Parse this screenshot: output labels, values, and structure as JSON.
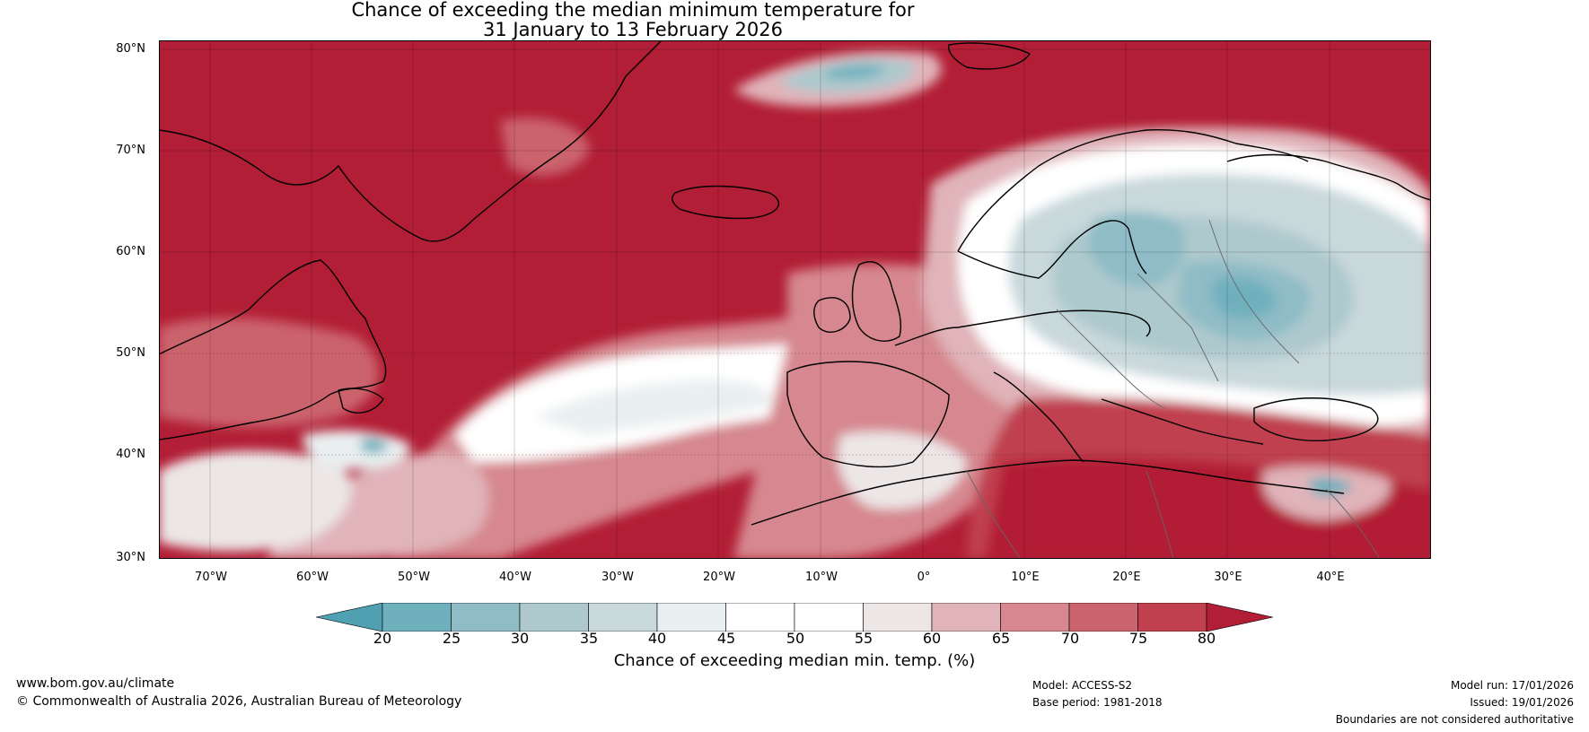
{
  "title_line1": "Chance of exceeding the median minimum temperature for",
  "title_line2": "31 January to 13 February 2026",
  "lat_labels": [
    "80°N",
    "70°N",
    "60°N",
    "50°N",
    "40°N",
    "30°N"
  ],
  "lon_labels": [
    "70°W",
    "60°W",
    "50°W",
    "40°W",
    "30°W",
    "20°W",
    "10°W",
    "0°",
    "10°E",
    "20°E",
    "30°E",
    "40°E"
  ],
  "colorbar": {
    "label": "Chance of exceeding median min. temp. (%)",
    "ticks": [
      "20",
      "25",
      "30",
      "35",
      "40",
      "45",
      "50",
      "55",
      "60",
      "65",
      "70",
      "75",
      "80"
    ],
    "colors": [
      "#4fa1b2",
      "#6fb0bd",
      "#8fbcc6",
      "#adc9ce",
      "#c9d8db",
      "#e9eff0",
      "#ffffff",
      "#ffffff",
      "#ece6e7",
      "#e0b4b9",
      "#d6878f",
      "#cb646d",
      "#c0404f",
      "#b21e35"
    ]
  },
  "footer": {
    "website": "www.bom.gov.au/climate",
    "copyright": "© Commonwealth of Australia 2026, Australian Bureau of Meteorology",
    "model": "Model: ACCESS-S2",
    "base_period": "Base period: 1981-2018",
    "model_run": "Model run: 17/01/2026",
    "issued": "Issued: 19/01/2026",
    "boundaries": "Boundaries are not considered authoritative"
  },
  "map_colors": {
    "deep_red": "#b21e35",
    "red": "#c0404f",
    "mid_red": "#cb646d",
    "pink": "#d6878f",
    "light_pink": "#e0b4b9",
    "near_white": "#ece6e7",
    "white": "#ffffff",
    "pale_blue": "#e9eff0",
    "light_blue": "#c9d8db",
    "blue_grey": "#adc9ce",
    "blue": "#8fbcc6",
    "teal": "#6fb0bd",
    "deep_teal": "#4fa1b2"
  }
}
